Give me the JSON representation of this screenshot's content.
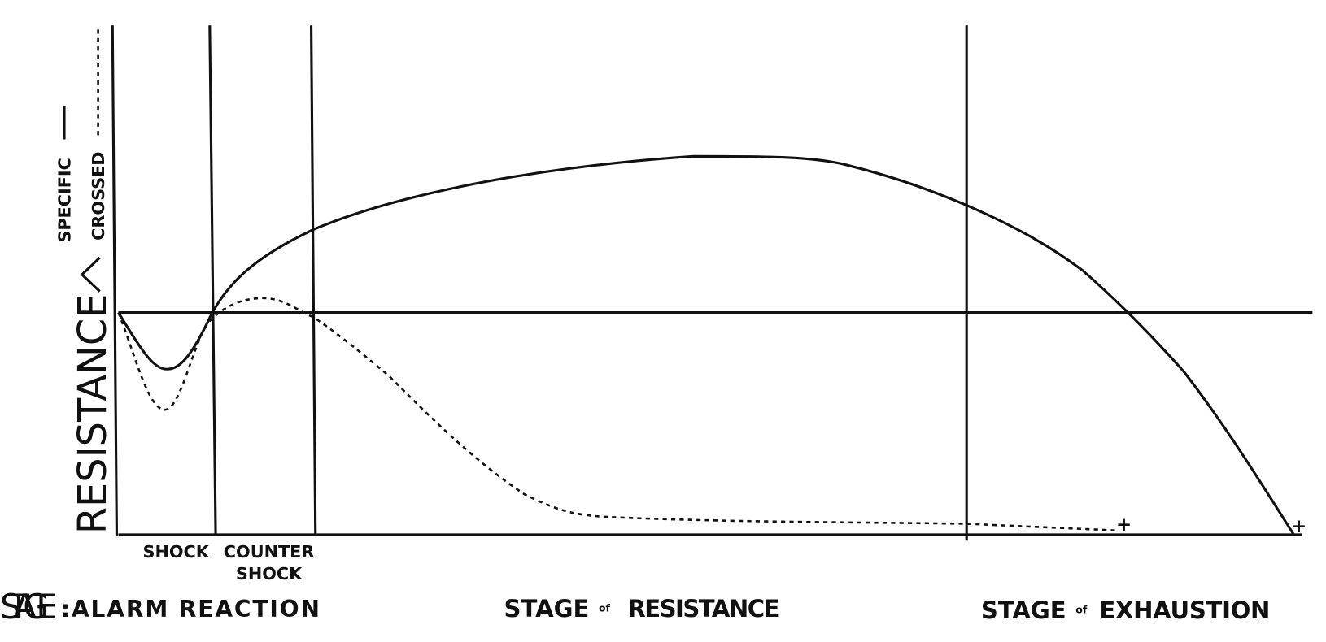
{
  "axis_label": "RESISTANCE",
  "legend": [
    {
      "label": "SPECIFIC"
    },
    {
      "label": "CROSSED"
    }
  ],
  "phases": [
    {
      "label": "SHOCK"
    },
    {
      "label": [
        "COUNTER",
        "SHOCK"
      ]
    }
  ],
  "stage_prefix": "STAGE",
  "stages": [
    {
      "name": ":ALARM REACTION"
    },
    {
      "stage": "STAGE",
      "of": "of",
      "name": "RESISTANCE"
    },
    {
      "stage": "STAGE",
      "of": "of",
      "name": "EXHAUSTION"
    }
  ],
  "end_marks": [
    "+",
    "+"
  ]
}
